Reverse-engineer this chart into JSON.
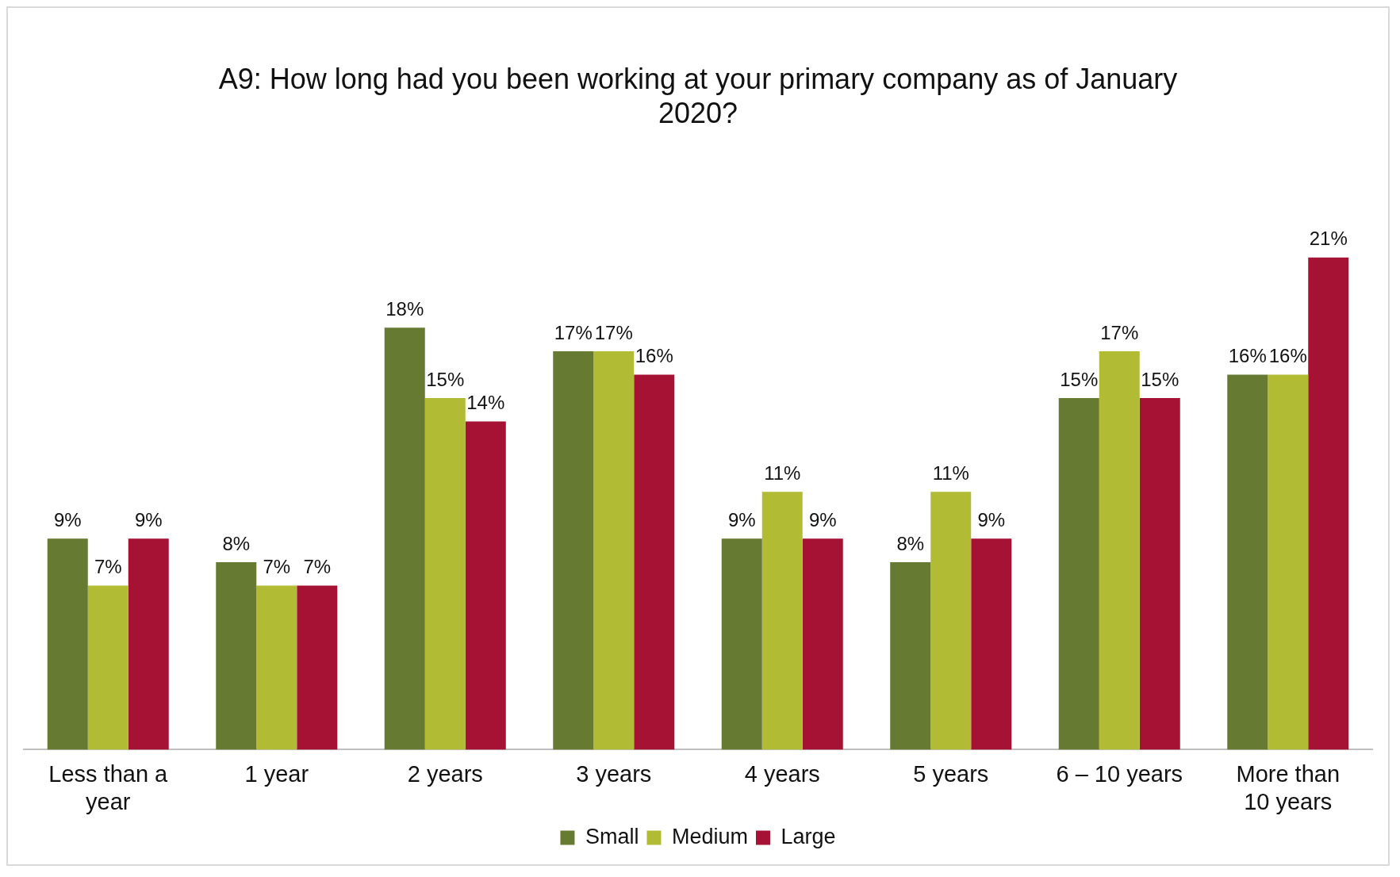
{
  "chart_data": {
    "type": "bar",
    "title": "A9: How long had you been working at your primary company as of January 2020?",
    "categories": [
      "Less than a year",
      "1 year",
      "2 years",
      "3 years",
      "4 years",
      "5 years",
      "6 – 10 years",
      "More than 10 years"
    ],
    "series": [
      {
        "name": "Small",
        "color": "#667a32",
        "values": [
          9,
          8,
          18,
          17,
          9,
          8,
          15,
          16
        ],
        "value_labels": [
          "9%",
          "8%",
          "18%",
          "17%",
          "9%",
          "8%",
          "15%",
          "16%"
        ]
      },
      {
        "name": "Medium",
        "color": "#b2bb34",
        "values": [
          7,
          7,
          15,
          17,
          11,
          11,
          17,
          16
        ],
        "value_labels": [
          "7%",
          "7%",
          "15%",
          "17%",
          "11%",
          "11%",
          "17%",
          "16%"
        ]
      },
      {
        "name": "Large",
        "color": "#a51234",
        "values": [
          9,
          7,
          14,
          16,
          9,
          9,
          15,
          21
        ],
        "value_labels": [
          "9%",
          "7%",
          "14%",
          "16%",
          "9%",
          "9%",
          "15%",
          "21%"
        ]
      }
    ],
    "legend": "bottom",
    "grid": false
  }
}
